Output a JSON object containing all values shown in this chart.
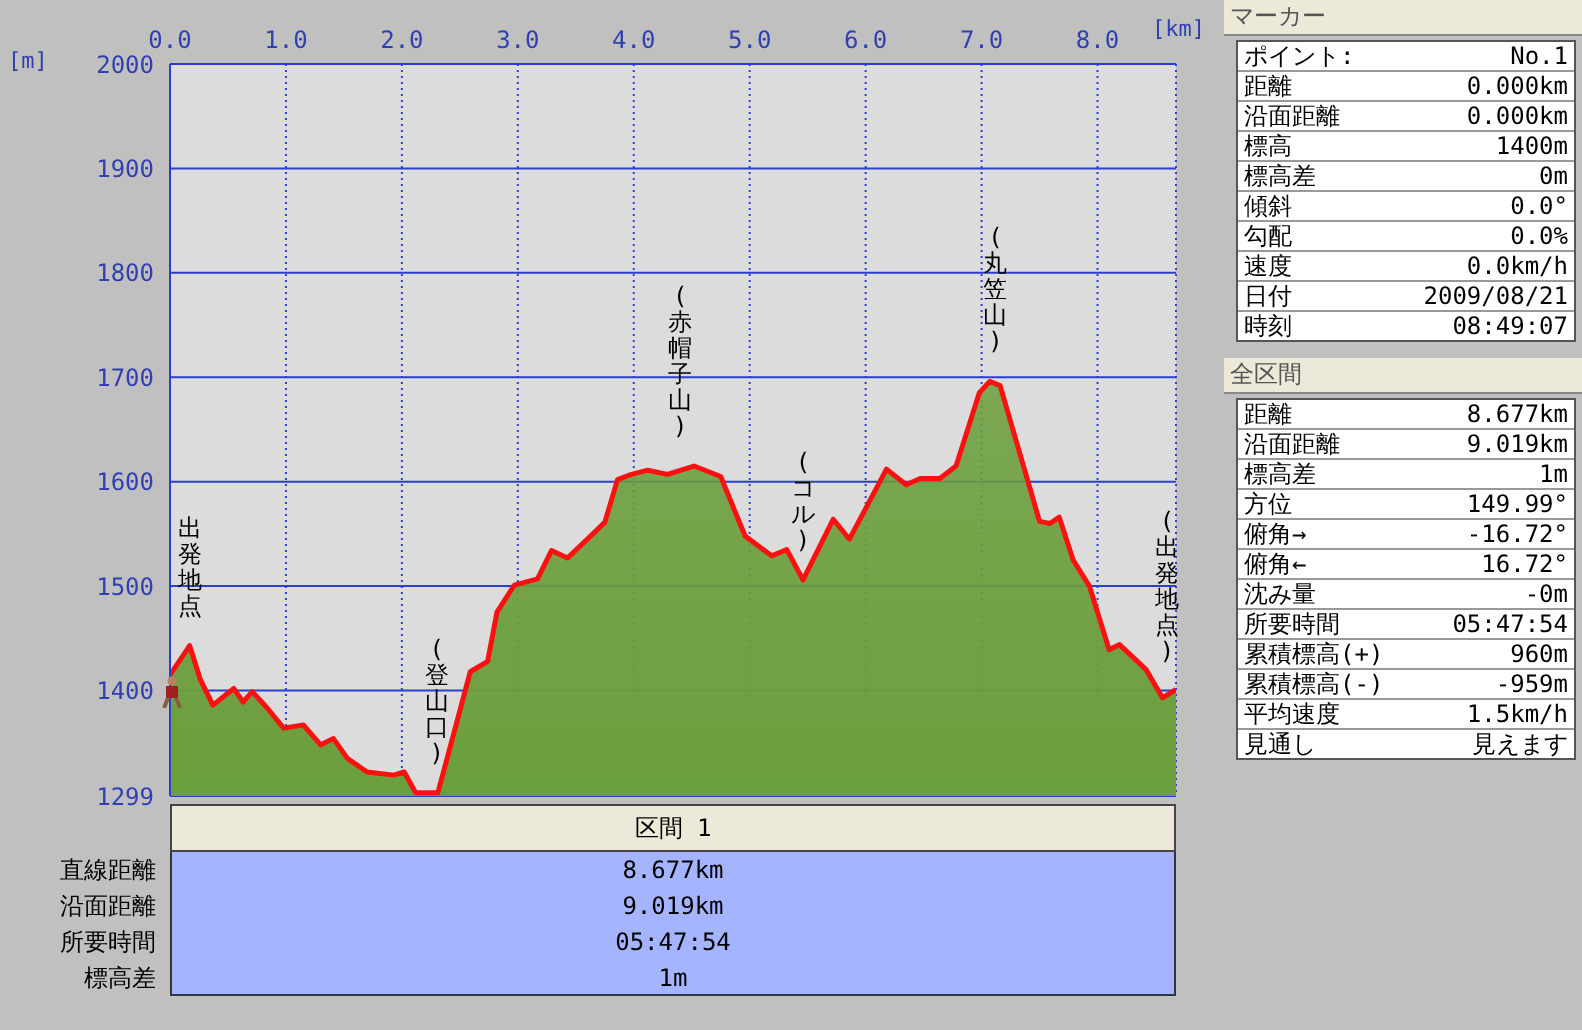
{
  "chart_data": [
    {
      "type": "area",
      "xlabel": "[km]",
      "ylabel": "[m]",
      "x": [
        0,
        0.17,
        0.26,
        0.37,
        0.55,
        0.63,
        0.71,
        0.84,
        0.98,
        1.15,
        1.3,
        1.41,
        1.53,
        1.7,
        1.93,
        2.02,
        2.12,
        2.31,
        2.39,
        2.59,
        2.74,
        2.82,
        2.97,
        3.17,
        3.29,
        3.43,
        3.6,
        3.75,
        3.86,
        3.98,
        4.12,
        4.29,
        4.52,
        4.75,
        4.96,
        5.19,
        5.32,
        5.46,
        5.72,
        5.86,
        6.18,
        6.35,
        6.47,
        6.64,
        6.78,
        6.98,
        7.07,
        7.16,
        7.38,
        7.5,
        7.59,
        7.67,
        7.79,
        7.93,
        8.1,
        8.19,
        8.42,
        8.56,
        8.677
      ],
      "series": [
        {
          "color": "#6b9e3c",
          "values": [
            1415,
            1443,
            1411,
            1386,
            1402,
            1389,
            1399,
            1383,
            1364,
            1367,
            1348,
            1354,
            1335,
            1322,
            1319,
            1322,
            1302,
            1302,
            1335,
            1418,
            1428,
            1475,
            1501,
            1507,
            1534,
            1527,
            1545,
            1561,
            1602,
            1607,
            1611,
            1607,
            1615,
            1605,
            1548,
            1529,
            1535,
            1506,
            1564,
            1545,
            1612,
            1597,
            1603,
            1603,
            1615,
            1685,
            1696,
            1692,
            1608,
            1562,
            1560,
            1566,
            1525,
            1500,
            1439,
            1444,
            1420,
            1393,
            1401
          ]
        }
      ],
      "xlim": [
        0,
        8.677
      ],
      "xticks": [
        {
          "value": 0,
          "label": "0.0"
        },
        {
          "value": 1,
          "label": "1.0"
        },
        {
          "value": 2,
          "label": "2.0"
        },
        {
          "value": 3,
          "label": "3.0"
        },
        {
          "value": 4,
          "label": "4.0"
        },
        {
          "value": 5,
          "label": "5.0"
        },
        {
          "value": 6,
          "label": "6.0"
        },
        {
          "value": 7,
          "label": "7.0"
        },
        {
          "value": 8,
          "label": "8.0"
        }
      ],
      "ylim": [
        1299,
        2000
      ],
      "yticks": [
        1299,
        1400,
        1500,
        1600,
        1700,
        1800,
        1900,
        2000
      ],
      "grid": true,
      "marker": "none",
      "annotations": [
        {
          "text": "出発地点",
          "x": 0.17,
          "y": 1443
        },
        {
          "text": "(登山口)",
          "x": 2.3,
          "y": 1302
        },
        {
          "text": "(赤帽子山)",
          "x": 4.4,
          "y": 1615
        },
        {
          "text": "(コル)",
          "x": 5.46,
          "y": 1506
        },
        {
          "text": "(丸笠山)",
          "x": 7.12,
          "y": 1696
        },
        {
          "text": "(出発地点)",
          "x": 8.6,
          "y": 1400
        }
      ]
    },
    {
      "type": "other",
      "title": "マーカー",
      "annotations": [
        ":"
      ],
      "categories": [
        "ポイント",
        "距離",
        "沿面距離",
        "標高",
        "標高差",
        "傾斜",
        "勾配",
        "速度",
        "日付",
        "時刻"
      ],
      "value_labels": [
        "No.1",
        "0.000km",
        "0.000km",
        "1400m",
        "0m",
        "0.0°",
        "0.0%",
        "0.0km/h",
        "2009/08/21",
        "08:49:07"
      ]
    },
    {
      "type": "other",
      "title": "全区間",
      "categories": [
        "距離",
        "沿面距離",
        "標高差",
        "方位",
        "俯角→",
        "俯角←",
        "沈み量",
        "所要時間",
        "累積標高(+)",
        "累積標高(-)",
        "平均速度",
        "見通し"
      ],
      "value_labels": [
        "8.677km",
        "9.019km",
        "1m",
        "149.99°",
        "-16.72°",
        "16.72°",
        "-0m",
        "05:47:54",
        "960m",
        "-959m",
        "1.5km/h",
        "見えます"
      ]
    },
    {
      "type": "other",
      "title": "区間 1",
      "categories": [
        "直線距離",
        "沿面距離",
        "所要時間",
        "標高差"
      ],
      "value_labels": [
        "8.677km",
        "9.019km",
        "05:47:54",
        "1m"
      ]
    }
  ]
}
